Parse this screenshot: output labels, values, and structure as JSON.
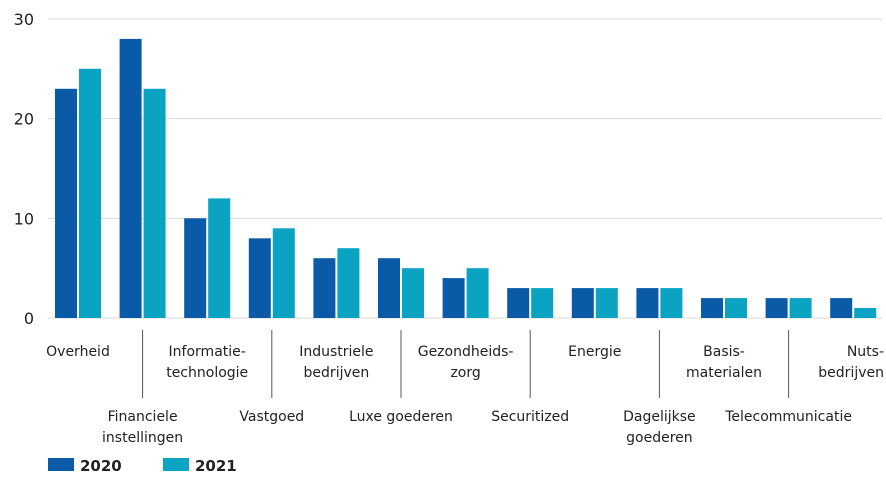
{
  "chart_data": {
    "type": "bar",
    "categories": [
      [
        "Overheid"
      ],
      [
        "Financiele",
        "instellingen"
      ],
      [
        "Informatie-",
        "technologie"
      ],
      [
        "Vastgoed"
      ],
      [
        "Industriele",
        "bedrijven"
      ],
      [
        "Luxe goederen"
      ],
      [
        "Gezondheids-",
        "zorg"
      ],
      [
        "Securitized"
      ],
      [
        "Energie"
      ],
      [
        "Dagelijkse",
        "goederen"
      ],
      [
        "Basis-",
        "materialen"
      ],
      [
        "Telecommunicatie"
      ],
      [
        "Nuts-",
        "bedrijven"
      ]
    ],
    "series": [
      {
        "name": "2020",
        "color": "#0a5aa8",
        "values": [
          23,
          28,
          10,
          8,
          6,
          6,
          4,
          3,
          3,
          3,
          2,
          2,
          2
        ]
      },
      {
        "name": "2021",
        "color": "#0aa3c2",
        "values": [
          25,
          23,
          12,
          9,
          7,
          5,
          5,
          3,
          3,
          3,
          2,
          2,
          1
        ]
      }
    ],
    "yticks": [
      0,
      10,
      20,
      30
    ],
    "ylim": [
      0,
      30
    ],
    "grid": true,
    "legend_position": "bottom-left",
    "title": "",
    "xlabel": "",
    "ylabel": ""
  }
}
